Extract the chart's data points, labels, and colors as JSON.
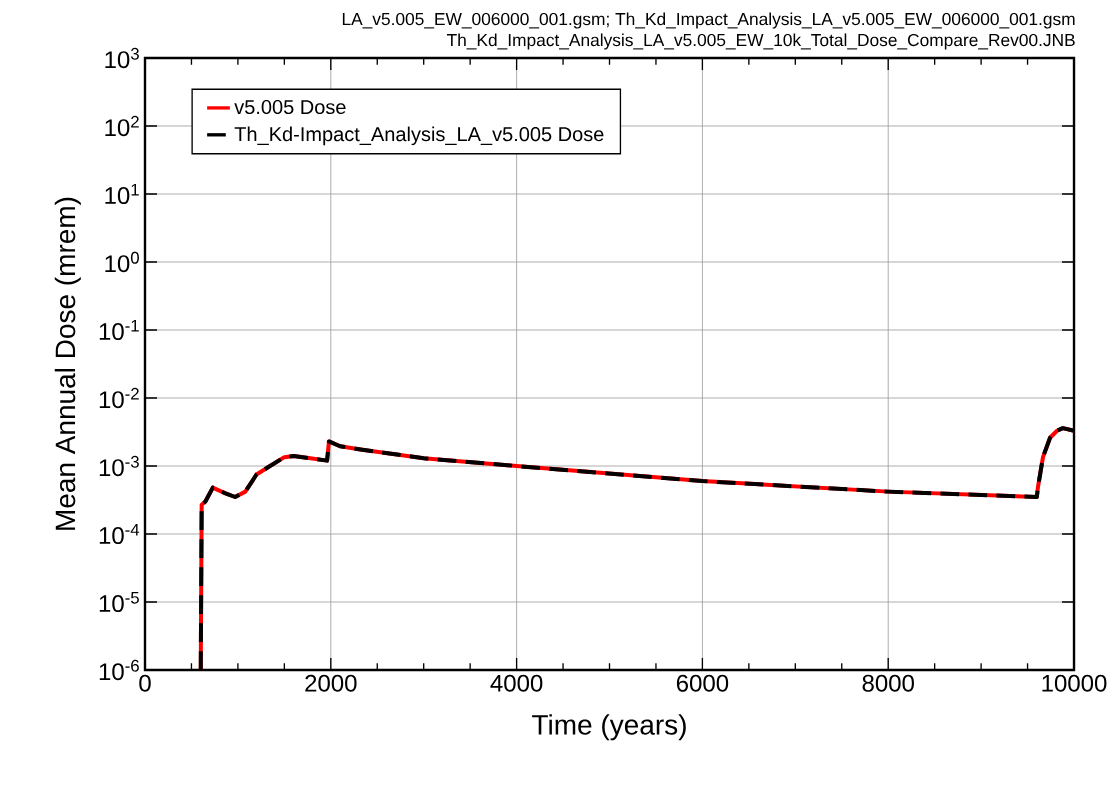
{
  "chart_data": {
    "type": "line",
    "title": "LA_v5.005_EW_006000_001.gsm; Th_Kd_Impact_Analysis_LA_v5.005_EW_006000_001.gsm",
    "subtitle": "Th_Kd_Impact_Analysis_LA_v5.005_EW_10k_Total_Dose_Compare_Rev00.JNB",
    "xlabel": "Time (years)",
    "ylabel": "Mean Annual Dose (mrem)",
    "log": "y",
    "grid": true,
    "legend": "top left",
    "marker": "none",
    "xlim": [
      0,
      10000
    ],
    "xticks": [
      0,
      2000,
      4000,
      6000,
      8000,
      10000
    ],
    "ylim": [
      1e-06,
      1000
    ],
    "yticks": [
      {
        "value": 1e-06,
        "label": "10$^{-6}$"
      },
      {
        "value": 1e-05,
        "label": "10$^{-5}$"
      },
      {
        "value": 0.0001,
        "label": "10$^{-4}$"
      },
      {
        "value": 0.001,
        "label": "10$^{-3}$"
      },
      {
        "value": 0.01,
        "label": "10$^{-2}$"
      },
      {
        "value": 0.1,
        "label": "10$^{-1}$"
      },
      {
        "value": 1,
        "label": "10$^{0}$"
      },
      {
        "value": 10,
        "label": "10$^{1}$"
      },
      {
        "value": 100,
        "label": "10$^{2}$"
      },
      {
        "value": 1000,
        "label": "10$^{3}$"
      }
    ],
    "x": [
      600,
      610,
      650,
      730,
      860,
      970,
      1080,
      1200,
      1320,
      1500,
      1600,
      1780,
      1960,
      1980,
      2100,
      2320,
      3000,
      4000,
      6000,
      8000,
      9600,
      9612,
      9666,
      9742,
      9817,
      9880,
      10000
    ],
    "series": [
      {
        "name": "v5.005 Dose",
        "color": "#ff0000",
        "line_style": "solid",
        "values": [
          1e-06,
          0.00027,
          0.0003,
          0.00048,
          0.0004,
          0.00035,
          0.00042,
          0.00075,
          0.00095,
          0.00135,
          0.0014,
          0.0013,
          0.0012,
          0.0023,
          0.00195,
          0.00175,
          0.0013,
          0.001,
          0.0006,
          0.00042,
          0.00035,
          0.00049,
          0.00135,
          0.0026,
          0.0033,
          0.0036,
          0.0033
        ]
      },
      {
        "name": "Th_Kd-Impact_Analysis_LA_v5.005 Dose",
        "color": "#000000",
        "line_style": "dashed",
        "values": [
          1e-06,
          0.00027,
          0.0003,
          0.00048,
          0.0004,
          0.00035,
          0.00042,
          0.00075,
          0.00095,
          0.00135,
          0.0014,
          0.0013,
          0.0012,
          0.0023,
          0.00195,
          0.00175,
          0.0013,
          0.001,
          0.0006,
          0.00042,
          0.00035,
          0.00049,
          0.00135,
          0.0026,
          0.0033,
          0.0036,
          0.0033
        ]
      }
    ]
  }
}
